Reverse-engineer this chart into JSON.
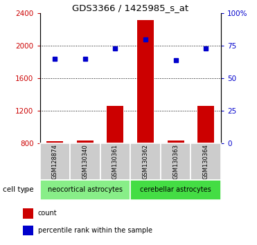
{
  "title": "GDS3366 / 1425985_s_at",
  "samples": [
    "GSM128874",
    "GSM130340",
    "GSM130361",
    "GSM130362",
    "GSM130363",
    "GSM130364"
  ],
  "counts": [
    830,
    835,
    1260,
    2320,
    832,
    1265
  ],
  "percentile_ranks": [
    65,
    65,
    73,
    80,
    64,
    73
  ],
  "ylim_left": [
    800,
    2400
  ],
  "ylim_right": [
    0,
    100
  ],
  "yticks_left": [
    800,
    1200,
    1600,
    2000,
    2400
  ],
  "yticks_right": [
    0,
    25,
    50,
    75,
    100
  ],
  "ytick_labels_right": [
    "0",
    "25",
    "50",
    "75",
    "100%"
  ],
  "bar_color": "#cc0000",
  "dot_color": "#0000cc",
  "bar_bottom": 800,
  "groups": [
    {
      "label": "neocortical astrocytes",
      "start": 0,
      "end": 3,
      "color": "#88ee88"
    },
    {
      "label": "cerebellar astrocytes",
      "start": 3,
      "end": 6,
      "color": "#44dd44"
    }
  ],
  "cell_type_label": "cell type",
  "legend_items": [
    {
      "label": "count",
      "color": "#cc0000"
    },
    {
      "label": "percentile rank within the sample",
      "color": "#0000cc"
    }
  ],
  "dotted_grid_color": "#000000",
  "tick_label_color_left": "#cc0000",
  "tick_label_color_right": "#0000cc",
  "bar_width": 0.55,
  "sample_box_color": "#cccccc",
  "spine_color": "#000000"
}
